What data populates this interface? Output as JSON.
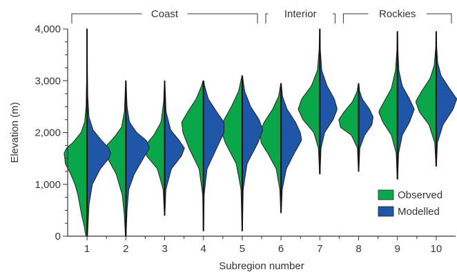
{
  "chart_data": {
    "type": "violin",
    "xlabel": "Subregion number",
    "ylabel": "Elevation (m)",
    "ylim": [
      0,
      4000
    ],
    "xlim": [
      0.5,
      10.5
    ],
    "yticks": [
      0,
      1000,
      2000,
      3000,
      4000
    ],
    "ytick_labels": [
      "0",
      "1,000",
      "2,000",
      "3,000",
      "4,000"
    ],
    "categories": [
      "1",
      "2",
      "3",
      "4",
      "5",
      "6",
      "7",
      "8",
      "9",
      "10"
    ],
    "regions": [
      {
        "label": "Coast",
        "from": 1,
        "to": 5
      },
      {
        "label": "Interior",
        "from": 6,
        "to": 7
      },
      {
        "label": "Rockies",
        "from": 8,
        "to": 10
      }
    ],
    "legend": {
      "position": "bottom-right"
    },
    "series": [
      {
        "name": "Observed",
        "side": "left",
        "color": "#0aa64a",
        "distributions": [
          {
            "min": 0,
            "max": 4000,
            "profile": [
              [
                0,
                0.05
              ],
              [
                200,
                0.12
              ],
              [
                400,
                0.22
              ],
              [
                600,
                0.3
              ],
              [
                800,
                0.38
              ],
              [
                1000,
                0.5
              ],
              [
                1200,
                0.68
              ],
              [
                1400,
                0.9
              ],
              [
                1500,
                0.92
              ],
              [
                1600,
                0.95
              ],
              [
                1700,
                0.85
              ],
              [
                1800,
                0.6
              ],
              [
                2000,
                0.25
              ],
              [
                2200,
                0.1
              ],
              [
                2500,
                0.04
              ],
              [
                3000,
                0.02
              ],
              [
                4000,
                0.01
              ]
            ]
          },
          {
            "min": 0,
            "max": 3000,
            "profile": [
              [
                0,
                0.02
              ],
              [
                400,
                0.06
              ],
              [
                800,
                0.15
              ],
              [
                1200,
                0.4
              ],
              [
                1500,
                0.75
              ],
              [
                1650,
                0.85
              ],
              [
                1750,
                0.8
              ],
              [
                1900,
                0.5
              ],
              [
                2100,
                0.18
              ],
              [
                2400,
                0.06
              ],
              [
                3000,
                0.01
              ]
            ]
          },
          {
            "min": 400,
            "max": 3000,
            "profile": [
              [
                400,
                0.01
              ],
              [
                900,
                0.06
              ],
              [
                1300,
                0.3
              ],
              [
                1550,
                0.75
              ],
              [
                1750,
                0.8
              ],
              [
                1950,
                0.45
              ],
              [
                2200,
                0.15
              ],
              [
                2600,
                0.04
              ],
              [
                3000,
                0.01
              ]
            ]
          },
          {
            "min": 100,
            "max": 3000,
            "profile": [
              [
                100,
                0.01
              ],
              [
                800,
                0.03
              ],
              [
                1300,
                0.18
              ],
              [
                1700,
                0.6
              ],
              [
                2000,
                0.85
              ],
              [
                2200,
                0.9
              ],
              [
                2400,
                0.65
              ],
              [
                2650,
                0.3
              ],
              [
                2900,
                0.08
              ],
              [
                3000,
                0.02
              ]
            ]
          },
          {
            "min": 100,
            "max": 3100,
            "profile": [
              [
                100,
                0.01
              ],
              [
                900,
                0.05
              ],
              [
                1400,
                0.25
              ],
              [
                1800,
                0.7
              ],
              [
                2050,
                0.88
              ],
              [
                2250,
                0.75
              ],
              [
                2500,
                0.45
              ],
              [
                2800,
                0.15
              ],
              [
                3100,
                0.01
              ]
            ]
          },
          {
            "min": 450,
            "max": 2950,
            "profile": [
              [
                450,
                0.01
              ],
              [
                900,
                0.05
              ],
              [
                1300,
                0.2
              ],
              [
                1600,
                0.55
              ],
              [
                1800,
                0.82
              ],
              [
                2000,
                0.88
              ],
              [
                2200,
                0.7
              ],
              [
                2450,
                0.35
              ],
              [
                2700,
                0.1
              ],
              [
                2950,
                0.01
              ]
            ]
          },
          {
            "min": 1200,
            "max": 4000,
            "profile": [
              [
                1200,
                0.01
              ],
              [
                1700,
                0.06
              ],
              [
                2000,
                0.25
              ],
              [
                2250,
                0.7
              ],
              [
                2450,
                0.9
              ],
              [
                2650,
                0.75
              ],
              [
                2900,
                0.35
              ],
              [
                3200,
                0.1
              ],
              [
                3600,
                0.03
              ],
              [
                4000,
                0.01
              ]
            ]
          },
          {
            "min": 1250,
            "max": 2950,
            "profile": [
              [
                1250,
                0.01
              ],
              [
                1700,
                0.05
              ],
              [
                1950,
                0.3
              ],
              [
                2100,
                0.75
              ],
              [
                2250,
                0.82
              ],
              [
                2400,
                0.6
              ],
              [
                2600,
                0.25
              ],
              [
                2800,
                0.06
              ],
              [
                2950,
                0.01
              ]
            ]
          },
          {
            "min": 1100,
            "max": 3950,
            "profile": [
              [
                1100,
                0.01
              ],
              [
                1600,
                0.05
              ],
              [
                1950,
                0.25
              ],
              [
                2200,
                0.6
              ],
              [
                2400,
                0.78
              ],
              [
                2600,
                0.55
              ],
              [
                2850,
                0.25
              ],
              [
                3200,
                0.08
              ],
              [
                3600,
                0.02
              ],
              [
                3950,
                0.01
              ]
            ]
          },
          {
            "min": 1350,
            "max": 3950,
            "profile": [
              [
                1350,
                0.01
              ],
              [
                1800,
                0.06
              ],
              [
                2150,
                0.3
              ],
              [
                2400,
                0.7
              ],
              [
                2600,
                0.85
              ],
              [
                2800,
                0.6
              ],
              [
                3050,
                0.25
              ],
              [
                3300,
                0.08
              ],
              [
                3650,
                0.02
              ],
              [
                3950,
                0.01
              ]
            ]
          }
        ]
      },
      {
        "name": "Modelled",
        "side": "right",
        "color": "#2056a8",
        "distributions": [
          {
            "min": 0,
            "max": 4000,
            "profile": [
              [
                0,
                0.02
              ],
              [
                600,
                0.08
              ],
              [
                1000,
                0.22
              ],
              [
                1300,
                0.55
              ],
              [
                1500,
                0.9
              ],
              [
                1600,
                0.98
              ],
              [
                1700,
                0.9
              ],
              [
                1850,
                0.6
              ],
              [
                2050,
                0.25
              ],
              [
                2300,
                0.08
              ],
              [
                2700,
                0.03
              ],
              [
                3200,
                0.015
              ],
              [
                4000,
                0.005
              ]
            ]
          },
          {
            "min": 0,
            "max": 3000,
            "profile": [
              [
                0,
                0.01
              ],
              [
                500,
                0.05
              ],
              [
                900,
                0.12
              ],
              [
                1200,
                0.35
              ],
              [
                1500,
                0.72
              ],
              [
                1700,
                0.98
              ],
              [
                1850,
                0.85
              ],
              [
                2000,
                0.45
              ],
              [
                2200,
                0.15
              ],
              [
                2500,
                0.05
              ],
              [
                3000,
                0.01
              ]
            ]
          },
          {
            "min": 400,
            "max": 3000,
            "profile": [
              [
                400,
                0.01
              ],
              [
                900,
                0.05
              ],
              [
                1300,
                0.28
              ],
              [
                1550,
                0.7
              ],
              [
                1700,
                0.82
              ],
              [
                1850,
                0.6
              ],
              [
                2050,
                0.25
              ],
              [
                2400,
                0.06
              ],
              [
                3000,
                0.01
              ]
            ]
          },
          {
            "min": 100,
            "max": 3000,
            "profile": [
              [
                100,
                0.01
              ],
              [
                800,
                0.03
              ],
              [
                1300,
                0.15
              ],
              [
                1700,
                0.55
              ],
              [
                2000,
                0.85
              ],
              [
                2200,
                0.85
              ],
              [
                2400,
                0.55
              ],
              [
                2650,
                0.2
              ],
              [
                2900,
                0.05
              ],
              [
                3000,
                0.01
              ]
            ]
          },
          {
            "min": 100,
            "max": 3100,
            "profile": [
              [
                100,
                0.01
              ],
              [
                900,
                0.04
              ],
              [
                1400,
                0.2
              ],
              [
                1800,
                0.65
              ],
              [
                2050,
                0.85
              ],
              [
                2250,
                0.7
              ],
              [
                2500,
                0.35
              ],
              [
                2800,
                0.1
              ],
              [
                3100,
                0.01
              ]
            ]
          },
          {
            "min": 450,
            "max": 2950,
            "profile": [
              [
                450,
                0.01
              ],
              [
                900,
                0.05
              ],
              [
                1300,
                0.22
              ],
              [
                1600,
                0.55
              ],
              [
                1850,
                0.85
              ],
              [
                2000,
                0.8
              ],
              [
                2200,
                0.6
              ],
              [
                2450,
                0.25
              ],
              [
                2700,
                0.06
              ],
              [
                2950,
                0.01
              ]
            ]
          },
          {
            "min": 1200,
            "max": 4000,
            "profile": [
              [
                1200,
                0.01
              ],
              [
                1700,
                0.05
              ],
              [
                2000,
                0.2
              ],
              [
                2250,
                0.55
              ],
              [
                2450,
                0.72
              ],
              [
                2650,
                0.6
              ],
              [
                2900,
                0.3
              ],
              [
                3200,
                0.08
              ],
              [
                3600,
                0.02
              ],
              [
                4000,
                0.01
              ]
            ]
          },
          {
            "min": 1250,
            "max": 2950,
            "profile": [
              [
                1250,
                0.01
              ],
              [
                1700,
                0.05
              ],
              [
                1950,
                0.25
              ],
              [
                2150,
                0.55
              ],
              [
                2300,
                0.6
              ],
              [
                2450,
                0.45
              ],
              [
                2650,
                0.15
              ],
              [
                2800,
                0.04
              ],
              [
                2950,
                0.01
              ]
            ]
          },
          {
            "min": 1100,
            "max": 3950,
            "profile": [
              [
                1100,
                0.01
              ],
              [
                1600,
                0.05
              ],
              [
                1950,
                0.2
              ],
              [
                2200,
                0.5
              ],
              [
                2450,
                0.7
              ],
              [
                2650,
                0.5
              ],
              [
                2900,
                0.2
              ],
              [
                3200,
                0.06
              ],
              [
                3600,
                0.02
              ],
              [
                3950,
                0.01
              ]
            ]
          },
          {
            "min": 1350,
            "max": 3950,
            "profile": [
              [
                1350,
                0.01
              ],
              [
                1800,
                0.05
              ],
              [
                2150,
                0.28
              ],
              [
                2450,
                0.7
              ],
              [
                2650,
                0.85
              ],
              [
                2850,
                0.55
              ],
              [
                3100,
                0.2
              ],
              [
                3350,
                0.06
              ],
              [
                3650,
                0.02
              ],
              [
                3950,
                0.01
              ]
            ]
          }
        ]
      }
    ]
  }
}
